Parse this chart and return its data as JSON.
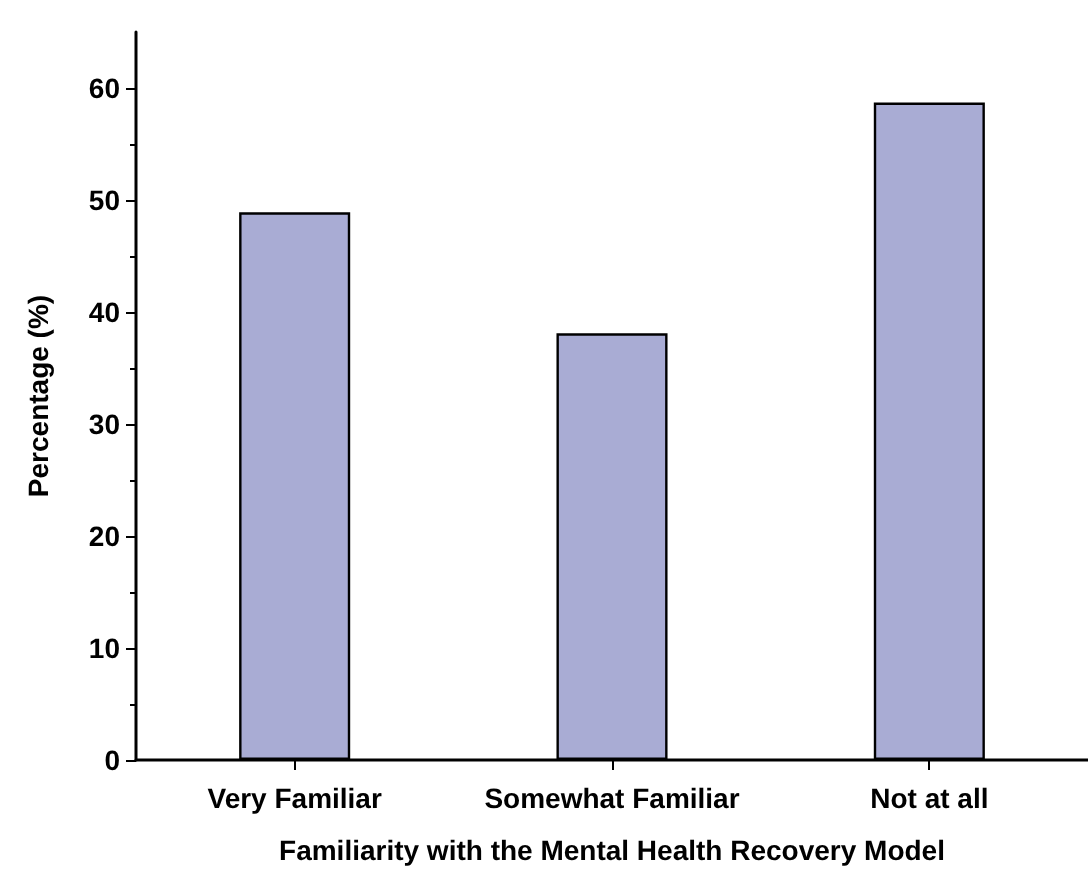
{
  "chart_data": {
    "type": "bar",
    "xlabel": "Familiarity with the Mental Health Recovery Model",
    "ylabel": "Percentage (%)",
    "categories": [
      "Very Familiar",
      "Somewhat Familiar",
      "Not at all"
    ],
    "values": [
      48.9,
      38.1,
      58.7
    ],
    "color": "#a9acd4",
    "ylim": [
      0,
      65
    ],
    "yticks": [
      0,
      10,
      20,
      30,
      40,
      50,
      60
    ],
    "grid": false
  }
}
